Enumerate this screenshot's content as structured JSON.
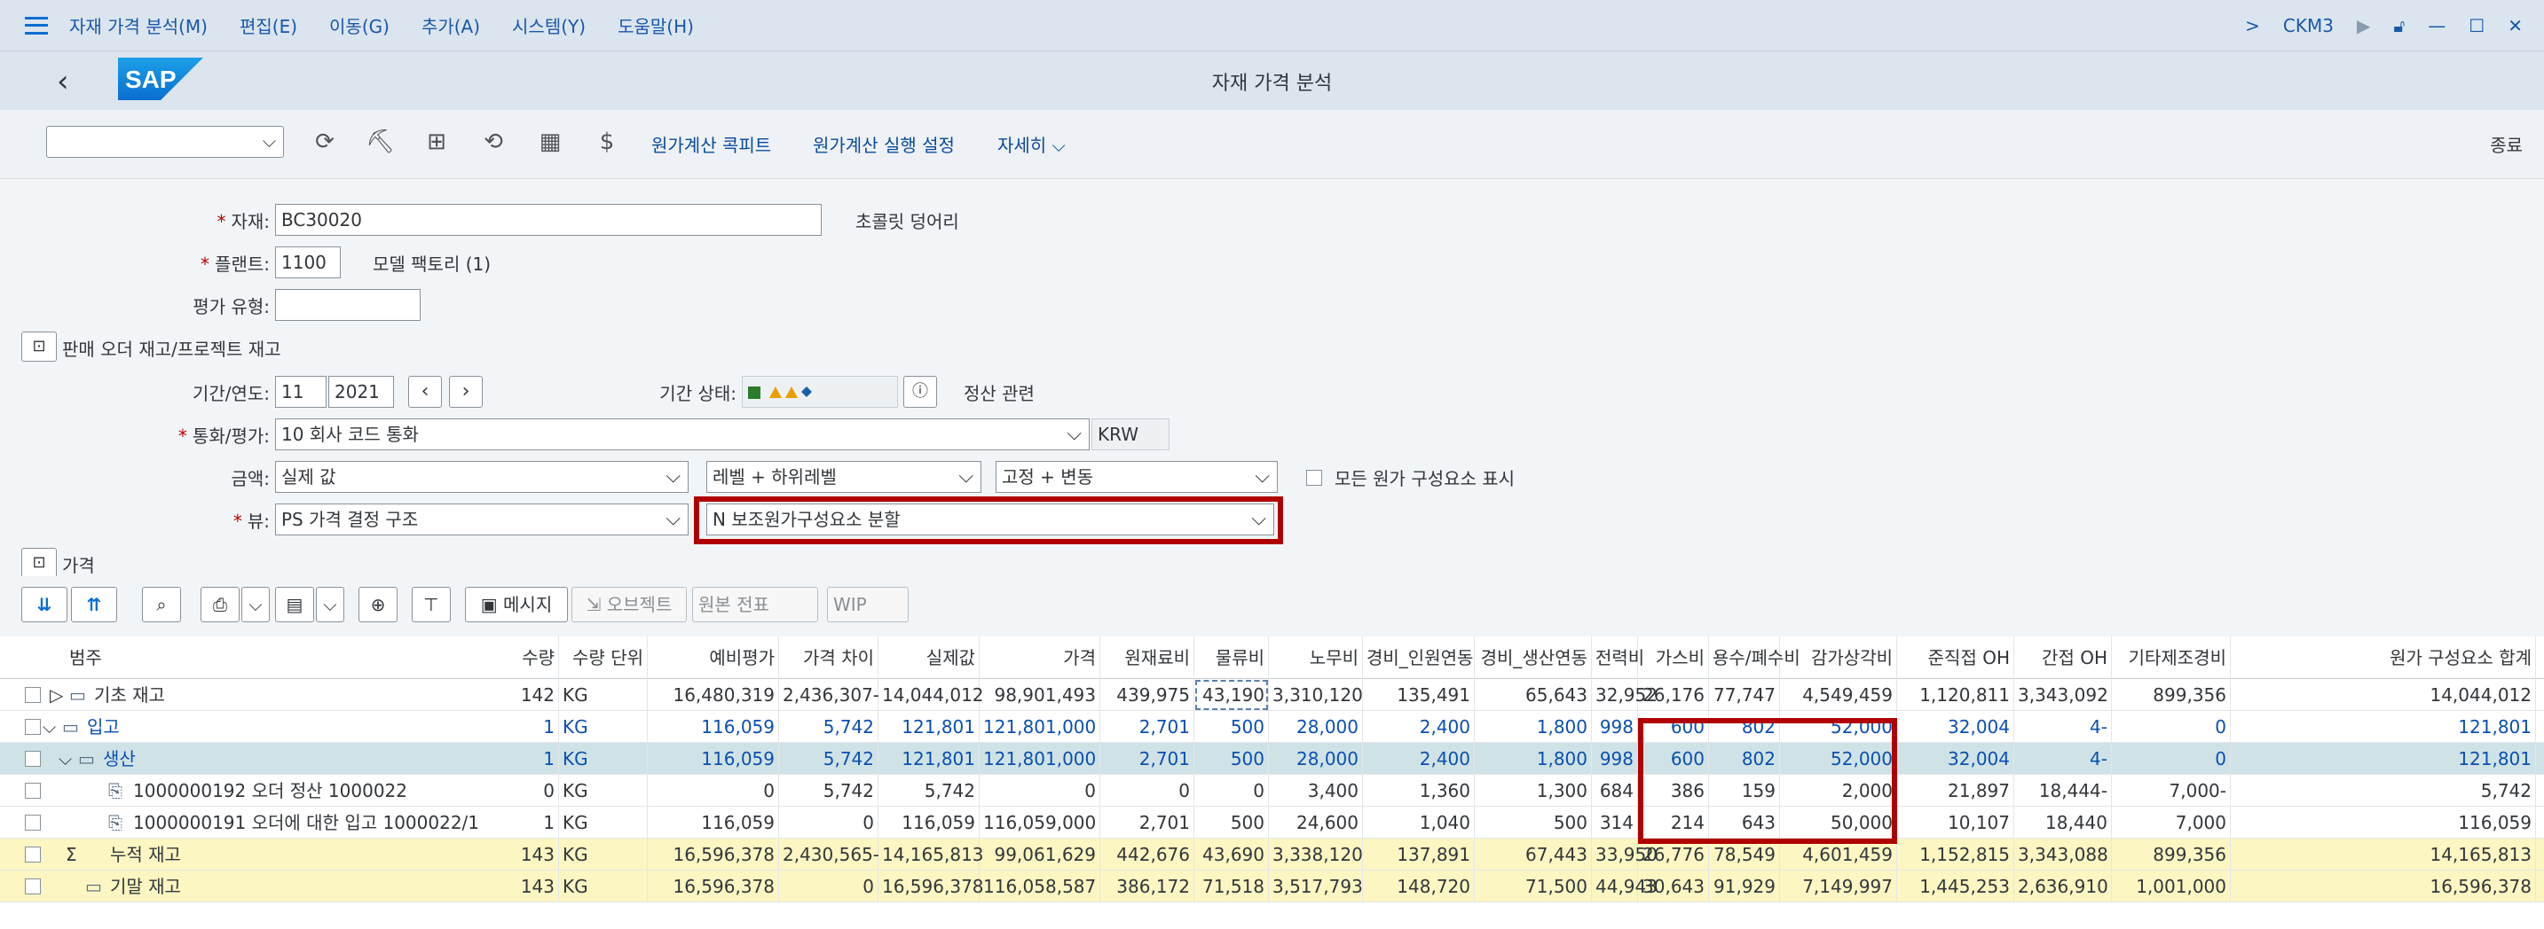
{
  "menubar": {
    "items": [
      "자재 가격 분석(M)",
      "편집(E)",
      "이동(G)",
      "추가(A)",
      "시스템(Y)",
      "도움말(H)"
    ],
    "tcode": "CKM3"
  },
  "titlebar": {
    "title": "자재 가격 분석",
    "logo": "SAP"
  },
  "toolbar": {
    "buttons": [
      "원가계산 콕피트",
      "원가계산 실행 설정",
      "자세히"
    ],
    "exit": "종료"
  },
  "form": {
    "material_label": "자재:",
    "material_value": "BC30020",
    "material_desc": "초콜릿 덩어리",
    "plant_label": "플랜트:",
    "plant_value": "1100",
    "plant_desc": "모델 팩토리 (1)",
    "valtype_label": "평가 유형:",
    "valtype_value": "",
    "sales_order_toggle": "판매 오더 재고/프로젝트 재고",
    "period_label": "기간/연도:",
    "period_value": "11",
    "year_value": "2021",
    "period_status_label": "기간 상태:",
    "settlement_label": "정산 관련",
    "currency_label": "통화/평가:",
    "currency_value": "10 회사 코드 통화",
    "currency_code": "KRW",
    "amount_label": "금액:",
    "amount_value": "실제 값",
    "level_value": "레벨 + 하위레벨",
    "fixvar_value": "고정 + 변동",
    "show_all_label": "모든 원가 구성요소 표시",
    "view_label": "뷰:",
    "view_value": "PS 가격 결정 구조",
    "split_value": "N 보조원가구성요소 분할",
    "price_toggle": "가격"
  },
  "grid_toolbar": {
    "message": "메시지",
    "object": "오브젝트",
    "orig_doc": "원본 전표",
    "wip": "WIP"
  },
  "grid": {
    "columns": [
      "범주",
      "수량",
      "수량 단위",
      "예비평가",
      "가격 차이",
      "실제값",
      "가격",
      "원재료비",
      "물류비",
      "노무비",
      "경비_인원연동",
      "경비_생산연동",
      "전력비",
      "가스비",
      "용수/폐수비",
      "감가상각비",
      "준직접 OH",
      "간접 OH",
      "기타제조경비",
      "원가 구성요소 합계"
    ],
    "rows": [
      {
        "category": "기초 재고",
        "values": [
          "142",
          "KG",
          "16,480,319",
          "2,436,307-",
          "14,044,012",
          "98,901,493",
          "439,975",
          "43,190",
          "3,310,120",
          "135,491",
          "65,643",
          "32,952",
          "26,176",
          "77,747",
          "4,549,459",
          "1,120,811",
          "3,343,092",
          "899,356",
          "14,044,012"
        ]
      },
      {
        "category": "입고",
        "values": [
          "1",
          "KG",
          "116,059",
          "5,742",
          "121,801",
          "121,801,000",
          "2,701",
          "500",
          "28,000",
          "2,400",
          "1,800",
          "998",
          "600",
          "802",
          "52,000",
          "32,004",
          "4-",
          "0",
          "121,801"
        ]
      },
      {
        "category": "생산",
        "values": [
          "1",
          "KG",
          "116,059",
          "5,742",
          "121,801",
          "121,801,000",
          "2,701",
          "500",
          "28,000",
          "2,400",
          "1,800",
          "998",
          "600",
          "802",
          "52,000",
          "32,004",
          "4-",
          "0",
          "121,801"
        ]
      },
      {
        "category": "1000000192 오더 정산 1000022",
        "values": [
          "0",
          "KG",
          "0",
          "5,742",
          "5,742",
          "0",
          "0",
          "0",
          "3,400",
          "1,360",
          "1,300",
          "684",
          "386",
          "159",
          "2,000",
          "21,897",
          "18,444-",
          "7,000-",
          "5,742"
        ]
      },
      {
        "category": "1000000191 오더에 대한 입고 1000022/1",
        "values": [
          "1",
          "KG",
          "116,059",
          "0",
          "116,059",
          "116,059,000",
          "2,701",
          "500",
          "24,600",
          "1,040",
          "500",
          "314",
          "214",
          "643",
          "50,000",
          "10,107",
          "18,440",
          "7,000",
          "116,059"
        ]
      },
      {
        "category": "누적 재고",
        "values": [
          "143",
          "KG",
          "16,596,378",
          "2,430,565-",
          "14,165,813",
          "99,061,629",
          "442,676",
          "43,690",
          "3,338,120",
          "137,891",
          "67,443",
          "33,950",
          "26,776",
          "78,549",
          "4,601,459",
          "1,152,815",
          "3,343,088",
          "899,356",
          "14,165,813"
        ]
      },
      {
        "category": "기말 재고",
        "values": [
          "143",
          "KG",
          "16,596,378",
          "0",
          "16,596,378",
          "116,058,587",
          "386,172",
          "71,518",
          "3,517,793",
          "148,720",
          "71,500",
          "44,943",
          "30,643",
          "91,929",
          "7,149,997",
          "1,445,253",
          "2,636,910",
          "1,001,000",
          "16,596,378"
        ]
      }
    ]
  }
}
